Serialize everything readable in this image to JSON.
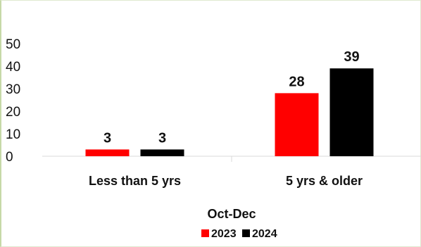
{
  "chart_data": {
    "type": "bar",
    "categories": [
      "Less than 5 yrs",
      "5 yrs & older"
    ],
    "series": [
      {
        "name": "2023",
        "values": [
          3,
          28
        ],
        "color": "#ff0000"
      },
      {
        "name": "2024",
        "values": [
          3,
          39
        ],
        "color": "#000000"
      }
    ],
    "data_labels": true,
    "xlabel": "Oct-Dec",
    "ylabel": "",
    "ylim": [
      0,
      50
    ],
    "yticks": [
      0,
      10,
      20,
      30,
      40,
      50
    ],
    "grid": false,
    "legend_position": "bottom"
  }
}
